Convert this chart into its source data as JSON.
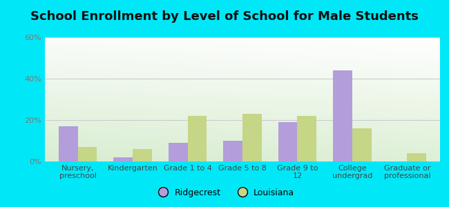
{
  "title": "School Enrollment by Level of School for Male Students",
  "categories": [
    "Nursery,\npreschool",
    "Kindergarten",
    "Grade 1 to 4",
    "Grade 5 to 8",
    "Grade 9 to\n12",
    "College\nundergrad",
    "Graduate or\nprofessional"
  ],
  "ridgecrest": [
    17,
    2,
    9,
    10,
    19,
    44,
    0
  ],
  "louisiana": [
    7,
    6,
    22,
    23,
    22,
    16,
    4
  ],
  "ridgecrest_color": "#b39ddb",
  "louisiana_color": "#c5d686",
  "background_outer": "#00e8f8",
  "ylim": [
    0,
    60
  ],
  "yticks": [
    0,
    20,
    40,
    60
  ],
  "ytick_labels": [
    "0%",
    "20%",
    "40%",
    "60%"
  ],
  "title_fontsize": 13,
  "tick_fontsize": 8,
  "legend_fontsize": 9,
  "bar_width": 0.35,
  "grid_color": "#cccccc",
  "tick_color": "#777777",
  "label_color": "#444444"
}
